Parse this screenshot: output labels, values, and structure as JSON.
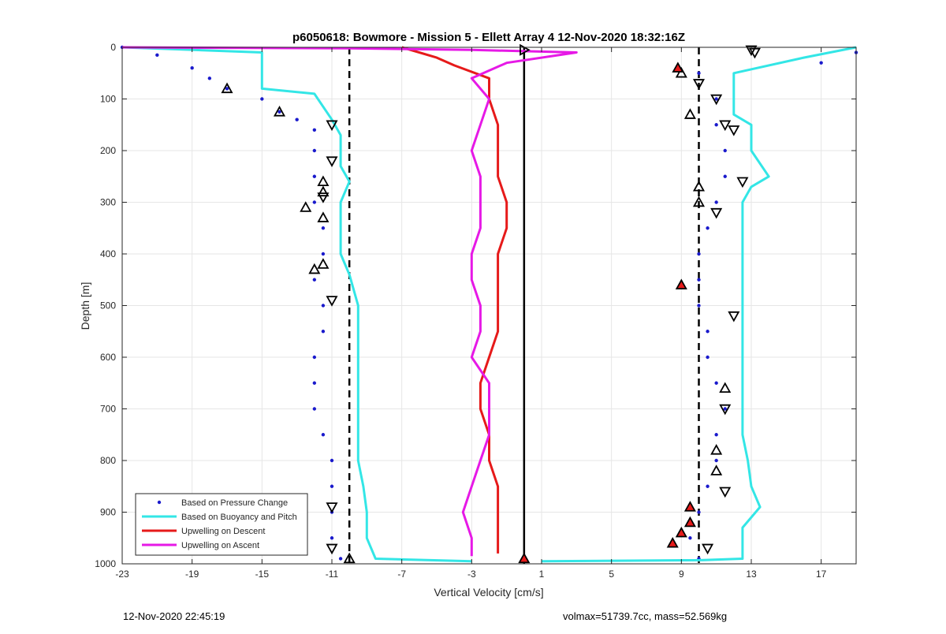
{
  "chart_data": {
    "type": "scatter",
    "title": "p6050618: Bowmore - Mission 5 - Ellett Array 4 12-Nov-2020 18:32:16Z",
    "xlabel": "Vertical Velocity [cm/s]",
    "ylabel": "Depth [m]",
    "xlim": [
      -23,
      19
    ],
    "ylim": [
      1000,
      0
    ],
    "y_reversed": true,
    "grid": true,
    "xticks": [
      -23,
      -19,
      -15,
      -11,
      -7,
      -3,
      1,
      5,
      9,
      13,
      17
    ],
    "yticks": [
      0,
      100,
      200,
      300,
      400,
      500,
      600,
      700,
      800,
      900,
      1000
    ],
    "legend": {
      "placement": "bottom-left",
      "entries": [
        {
          "label": "Based on Pressure Change",
          "color": "#1a1acc",
          "style": "dots"
        },
        {
          "label": "Based on Buoyancy and Pitch",
          "color": "#33e6e6",
          "style": "line"
        },
        {
          "label": "Upwelling on Descent",
          "color": "#e61a1a",
          "style": "line"
        },
        {
          "label": "Upwelling on Ascent",
          "color": "#e619e6",
          "style": "line"
        }
      ]
    },
    "reference_lines": [
      {
        "x": -10,
        "style": "dashed",
        "color": "#000000"
      },
      {
        "x": 0,
        "style": "solid",
        "color": "#000000"
      },
      {
        "x": 10,
        "style": "dashed",
        "color": "#000000"
      }
    ],
    "series": [
      {
        "name": "Based on Pressure Change (descent)",
        "color": "#1a1acc",
        "style": "dots",
        "points": [
          [
            -23,
            0
          ],
          [
            -21,
            15
          ],
          [
            -19,
            40
          ],
          [
            -18,
            60
          ],
          [
            -17,
            80
          ],
          [
            -15,
            100
          ],
          [
            -14,
            125
          ],
          [
            -13,
            140
          ],
          [
            -12,
            160
          ],
          [
            -12,
            200
          ],
          [
            -12,
            250
          ],
          [
            -12,
            300
          ],
          [
            -11.5,
            350
          ],
          [
            -11.5,
            400
          ],
          [
            -12,
            450
          ],
          [
            -11.5,
            500
          ],
          [
            -11.5,
            550
          ],
          [
            -12,
            600
          ],
          [
            -12,
            650
          ],
          [
            -12,
            700
          ],
          [
            -11.5,
            750
          ],
          [
            -11,
            800
          ],
          [
            -11,
            850
          ],
          [
            -11,
            900
          ],
          [
            -11,
            950
          ],
          [
            -10.5,
            990
          ]
        ]
      },
      {
        "name": "Based on Pressure Change (ascent)",
        "color": "#1a1acc",
        "style": "dots",
        "points": [
          [
            19,
            10
          ],
          [
            17,
            30
          ],
          [
            10,
            50
          ],
          [
            11,
            100
          ],
          [
            11,
            150
          ],
          [
            11.5,
            200
          ],
          [
            11.5,
            250
          ],
          [
            11,
            300
          ],
          [
            10.5,
            350
          ],
          [
            10,
            400
          ],
          [
            10,
            450
          ],
          [
            10,
            500
          ],
          [
            10.5,
            550
          ],
          [
            10.5,
            600
          ],
          [
            11,
            650
          ],
          [
            11.5,
            700
          ],
          [
            11,
            750
          ],
          [
            11,
            800
          ],
          [
            10.5,
            850
          ],
          [
            10,
            900
          ],
          [
            9.5,
            950
          ],
          [
            10,
            990
          ]
        ]
      },
      {
        "name": "Based on Buoyancy and Pitch (descent)",
        "color": "#33e6e6",
        "style": "line",
        "points": [
          [
            -23,
            0
          ],
          [
            -15,
            10
          ],
          [
            -15,
            50
          ],
          [
            -15,
            80
          ],
          [
            -12,
            90
          ],
          [
            -11,
            140
          ],
          [
            -10.5,
            170
          ],
          [
            -10.5,
            230
          ],
          [
            -10,
            260
          ],
          [
            -10.5,
            300
          ],
          [
            -10.5,
            350
          ],
          [
            -10.5,
            400
          ],
          [
            -10,
            440
          ],
          [
            -9.5,
            500
          ],
          [
            -9.5,
            550
          ],
          [
            -9.5,
            600
          ],
          [
            -9.5,
            650
          ],
          [
            -9.5,
            700
          ],
          [
            -9.5,
            750
          ],
          [
            -9.5,
            800
          ],
          [
            -9.2,
            850
          ],
          [
            -9,
            900
          ],
          [
            -9,
            950
          ],
          [
            -8.5,
            990
          ],
          [
            -3,
            995
          ]
        ]
      },
      {
        "name": "Based on Buoyancy and Pitch (ascent)",
        "color": "#33e6e6",
        "style": "line",
        "points": [
          [
            19,
            0
          ],
          [
            16,
            20
          ],
          [
            12,
            50
          ],
          [
            12,
            100
          ],
          [
            12,
            130
          ],
          [
            13,
            150
          ],
          [
            13,
            200
          ],
          [
            14,
            250
          ],
          [
            13,
            270
          ],
          [
            12.5,
            300
          ],
          [
            12.5,
            350
          ],
          [
            12.5,
            400
          ],
          [
            12.5,
            450
          ],
          [
            12.5,
            500
          ],
          [
            12.5,
            550
          ],
          [
            12.5,
            600
          ],
          [
            12.5,
            650
          ],
          [
            12.5,
            700
          ],
          [
            12.5,
            750
          ],
          [
            12.8,
            800
          ],
          [
            13,
            850
          ],
          [
            13.5,
            890
          ],
          [
            12.5,
            930
          ],
          [
            12.5,
            960
          ],
          [
            12.5,
            990
          ],
          [
            10,
            993
          ],
          [
            1,
            995
          ]
        ]
      },
      {
        "name": "Upwelling on Descent",
        "color": "#e61a1a",
        "style": "line",
        "points": [
          [
            -7,
            0
          ],
          [
            -5,
            20
          ],
          [
            -4,
            35
          ],
          [
            -2,
            60
          ],
          [
            -2,
            100
          ],
          [
            -1.5,
            150
          ],
          [
            -1.5,
            200
          ],
          [
            -1.5,
            250
          ],
          [
            -1,
            300
          ],
          [
            -1,
            350
          ],
          [
            -1.5,
            400
          ],
          [
            -1.5,
            450
          ],
          [
            -1.5,
            500
          ],
          [
            -1.5,
            550
          ],
          [
            -2,
            600
          ],
          [
            -2.5,
            650
          ],
          [
            -2.5,
            700
          ],
          [
            -2,
            750
          ],
          [
            -2,
            800
          ],
          [
            -1.5,
            850
          ],
          [
            -1.5,
            900
          ],
          [
            -1.5,
            950
          ],
          [
            -1.5,
            980
          ]
        ]
      },
      {
        "name": "Upwelling on Ascent",
        "color": "#e619e6",
        "style": "line",
        "points": [
          [
            -23,
            0
          ],
          [
            -10,
            2
          ],
          [
            -3,
            5
          ],
          [
            3,
            10
          ],
          [
            -1,
            30
          ],
          [
            -3,
            60
          ],
          [
            -2,
            100
          ],
          [
            -2.5,
            150
          ],
          [
            -3,
            200
          ],
          [
            -2.5,
            250
          ],
          [
            -2.5,
            300
          ],
          [
            -2.5,
            350
          ],
          [
            -3,
            400
          ],
          [
            -3,
            450
          ],
          [
            -2.5,
            500
          ],
          [
            -2.5,
            550
          ],
          [
            -3,
            600
          ],
          [
            -2,
            650
          ],
          [
            -2,
            700
          ],
          [
            -2,
            750
          ],
          [
            -2.5,
            800
          ],
          [
            -3,
            850
          ],
          [
            -3.5,
            900
          ],
          [
            -3,
            950
          ],
          [
            -3,
            985
          ]
        ]
      }
    ],
    "markers": [
      {
        "name": "descent markers",
        "symbol": "triangle-up",
        "points": [
          [
            -17,
            80
          ],
          [
            -14,
            125
          ],
          [
            -12.5,
            310
          ],
          [
            -12,
            430
          ],
          [
            -11.5,
            420
          ],
          [
            -11.5,
            330
          ],
          [
            -11.5,
            280
          ],
          [
            -11.5,
            260
          ],
          [
            -10,
            990
          ]
        ]
      },
      {
        "name": "descent markers down",
        "symbol": "triangle-down",
        "points": [
          [
            -11,
            150
          ],
          [
            -11,
            220
          ],
          [
            -11.5,
            290
          ],
          [
            -11,
            490
          ],
          [
            -11,
            890
          ],
          [
            -11,
            970
          ]
        ]
      },
      {
        "name": "ascent markers",
        "symbol": "triangle-down",
        "points": [
          [
            13,
            5
          ],
          [
            13.2,
            10
          ],
          [
            10,
            70
          ],
          [
            11,
            100
          ],
          [
            11.5,
            150
          ],
          [
            12,
            160
          ],
          [
            12.5,
            260
          ],
          [
            11,
            320
          ],
          [
            12,
            520
          ],
          [
            11.5,
            700
          ],
          [
            11.5,
            860
          ],
          [
            10.5,
            970
          ]
        ]
      },
      {
        "name": "ascent markers up",
        "symbol": "triangle-up",
        "points": [
          [
            9,
            50
          ],
          [
            9.5,
            130
          ],
          [
            10,
            270
          ],
          [
            10,
            300
          ],
          [
            11.5,
            660
          ],
          [
            11,
            780
          ],
          [
            11,
            820
          ]
        ]
      },
      {
        "name": "red ascent markers",
        "symbol": "triangle-up-filled",
        "points": [
          [
            8.8,
            40
          ],
          [
            9,
            460
          ],
          [
            9.5,
            890
          ],
          [
            9.5,
            920
          ],
          [
            9,
            940
          ],
          [
            8.5,
            960
          ]
        ]
      },
      {
        "name": "bottom marker",
        "symbol": "triangle-up-filled",
        "points": [
          [
            0,
            990
          ]
        ]
      },
      {
        "name": "top marker",
        "symbol": "triangle-right",
        "points": [
          [
            0,
            5
          ]
        ]
      }
    ]
  },
  "footer": {
    "timestamp": "12-Nov-2020 22:45:19",
    "vehicle_info": "volmax=51739.7cc, mass=52.569kg"
  }
}
